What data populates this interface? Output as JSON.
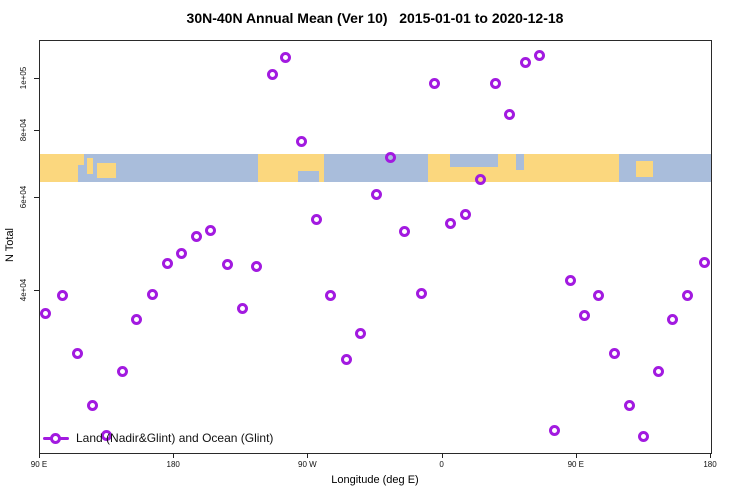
{
  "title": "30N-40N Annual Mean (Ver 10)   2015-01-01 to 2020-12-18",
  "chart_data": {
    "type": "scatter",
    "title": "30N-40N Annual Mean (Ver 10)   2015-01-01 to 2020-12-18",
    "xlabel": "Longitude (deg E)",
    "ylabel": "N Total",
    "marker_color": "#a21ae0",
    "x_axis": {
      "min": 90,
      "max": 540,
      "note": "longitude axis wraps eastward: 90E -> 180 -> 90W -> 0 -> 90E -> 180",
      "ticks": [
        {
          "pos": 90,
          "label": "90 E"
        },
        {
          "pos": 180,
          "label": "180"
        },
        {
          "pos": 270,
          "label": "90 W"
        },
        {
          "pos": 360,
          "label": "0"
        },
        {
          "pos": 450,
          "label": "90 E"
        },
        {
          "pos": 540,
          "label": "180"
        }
      ]
    },
    "y_axis": {
      "scale": "log",
      "min": 19900,
      "max": 118000,
      "ticks": [
        {
          "value": 100000,
          "label": "1e+05"
        },
        {
          "value": 80000,
          "label": "8e+04"
        },
        {
          "value": 60000,
          "label": "6e+04"
        },
        {
          "value": 40000,
          "label": "4e+04"
        }
      ]
    },
    "legend": {
      "label": "Land (Nadir&Glint) and Ocean (Glint)",
      "position": "bottom-left"
    },
    "series": [
      {
        "name": "Land (Nadir&Glint) and Ocean (Glint)",
        "marker": "open-circle",
        "color": "#a21ae0",
        "points": [
          [
            254.9,
            110000
          ],
          [
            245.7,
            102000
          ],
          [
            265.1,
            76600
          ],
          [
            424.9,
            110700
          ],
          [
            415.5,
            107600
          ],
          [
            354.9,
            98400
          ],
          [
            395.6,
            98000
          ],
          [
            405.0,
            86000
          ],
          [
            325.0,
            71400
          ],
          [
            385.5,
            65000
          ],
          [
            315.5,
            60900
          ],
          [
            275.4,
            54500
          ],
          [
            204.6,
            52100
          ],
          [
            195.2,
            50700
          ],
          [
            185.2,
            47100
          ],
          [
            175.8,
            45200
          ],
          [
            215.5,
            44900
          ],
          [
            234.9,
            44600
          ],
          [
            375.3,
            55800
          ],
          [
            365.4,
            53700
          ],
          [
            334.6,
            51800
          ],
          [
            535.6,
            45300
          ],
          [
            445.7,
            41900
          ],
          [
            104.9,
            39300
          ],
          [
            165.5,
            39400
          ],
          [
            285.0,
            39300
          ],
          [
            345.6,
            39600
          ],
          [
            464.8,
            39300
          ],
          [
            524.4,
            39300
          ],
          [
            225.6,
            37200
          ],
          [
            93.6,
            36400
          ],
          [
            154.7,
            35500
          ],
          [
            454.9,
            36100
          ],
          [
            514.5,
            35500
          ],
          [
            115.3,
            30600
          ],
          [
            295.3,
            29800
          ],
          [
            304.7,
            33400
          ],
          [
            145.6,
            28300
          ],
          [
            475.1,
            30600
          ],
          [
            505.0,
            28300
          ],
          [
            125.5,
            24400
          ],
          [
            485.6,
            24400
          ],
          [
            134.9,
            21500
          ],
          [
            435.3,
            21900
          ],
          [
            495.0,
            21400
          ]
        ]
      }
    ],
    "map_band": {
      "description": "30N-40N latitude strip of world map drawn across plot",
      "n_top": 72400,
      "n_bottom": 64100,
      "ocean_color": "#a9bddb",
      "land_color": "#fbd77e",
      "land_segments": [
        {
          "from": 90,
          "to": 119.5,
          "top": 0,
          "bottom": 1
        },
        {
          "from": 121.5,
          "to": 125.5,
          "top": 0.15,
          "bottom": 0.7
        },
        {
          "from": 128,
          "to": 141,
          "top": 0.3,
          "bottom": 0.85
        },
        {
          "from": 236.5,
          "to": 280.5,
          "top": 0,
          "bottom": 1
        },
        {
          "from": 350,
          "to": 478.5,
          "top": 0,
          "bottom": 1
        },
        {
          "from": 490,
          "to": 501,
          "top": 0.25,
          "bottom": 0.8
        }
      ],
      "ocean_patches": [
        {
          "from": 365,
          "to": 397,
          "top": 0,
          "bottom": 0.45
        },
        {
          "from": 409,
          "to": 414.5,
          "top": 0,
          "bottom": 0.55
        },
        {
          "from": 263,
          "to": 277,
          "top": 0.6,
          "bottom": 1
        },
        {
          "from": 115.5,
          "to": 119.5,
          "top": 0.4,
          "bottom": 1
        }
      ]
    }
  }
}
